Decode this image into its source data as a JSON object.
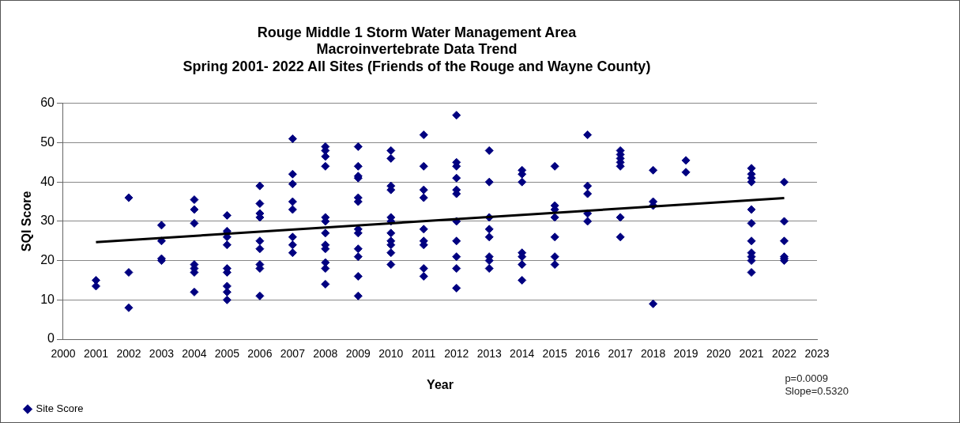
{
  "chart_data": {
    "type": "scatter",
    "title": "Rouge Middle 1 Storm Water Management Area\nMacroinvertebrate Data Trend\nSpring 2001- 2022 All Sites (Friends of the Rouge and Wayne County)",
    "xlabel": "Year",
    "ylabel": "SQI Score",
    "xlim": [
      2000,
      2023
    ],
    "xticks": [
      2000,
      2001,
      2002,
      2003,
      2004,
      2005,
      2006,
      2007,
      2008,
      2009,
      2010,
      2011,
      2012,
      2013,
      2014,
      2015,
      2016,
      2017,
      2018,
      2019,
      2020,
      2021,
      2022,
      2023
    ],
    "ylim": [
      0,
      60
    ],
    "yticks": [
      0,
      10,
      20,
      30,
      40,
      50,
      60
    ],
    "grid": "y",
    "legend": "bottom left",
    "marker": "diamond",
    "series": [
      {
        "name": "Site Score",
        "color": "#000080",
        "x": [
          2001,
          2001,
          2002,
          2002,
          2002,
          2003,
          2003,
          2003,
          2003,
          2004,
          2004,
          2004,
          2004,
          2004,
          2004,
          2004,
          2005,
          2005,
          2005,
          2005,
          2005,
          2005,
          2005,
          2005,
          2005,
          2005,
          2006,
          2006,
          2006,
          2006,
          2006,
          2006,
          2006,
          2006,
          2006,
          2007,
          2007,
          2007,
          2007,
          2007,
          2007,
          2007,
          2007,
          2008,
          2008,
          2008,
          2008,
          2008,
          2008,
          2008,
          2008,
          2008,
          2008,
          2008,
          2008,
          2009,
          2009,
          2009,
          2009,
          2009,
          2009,
          2009,
          2009,
          2009,
          2009,
          2009,
          2009,
          2010,
          2010,
          2010,
          2010,
          2010,
          2010,
          2010,
          2010,
          2010,
          2010,
          2010,
          2011,
          2011,
          2011,
          2011,
          2011,
          2011,
          2011,
          2011,
          2011,
          2012,
          2012,
          2012,
          2012,
          2012,
          2012,
          2012,
          2012,
          2012,
          2012,
          2012,
          2013,
          2013,
          2013,
          2013,
          2013,
          2013,
          2013,
          2013,
          2014,
          2014,
          2014,
          2014,
          2014,
          2014,
          2014,
          2015,
          2015,
          2015,
          2015,
          2015,
          2015,
          2015,
          2016,
          2016,
          2016,
          2016,
          2016,
          2017,
          2017,
          2017,
          2017,
          2017,
          2017,
          2017,
          2018,
          2018,
          2018,
          2018,
          2019,
          2019,
          2021,
          2021,
          2021,
          2021,
          2021,
          2021,
          2021,
          2021,
          2021,
          2021,
          2021,
          2022,
          2022,
          2022,
          2022,
          2022,
          2022
        ],
        "values": [
          15,
          13.5,
          36,
          17,
          8,
          29,
          25,
          20.5,
          20,
          35.5,
          33,
          29.5,
          19,
          18,
          17,
          12,
          31.5,
          27.5,
          27,
          26,
          24,
          18,
          17,
          13.5,
          12,
          10,
          39,
          34.5,
          32,
          31,
          25,
          23,
          19,
          18,
          11,
          51,
          42,
          39.5,
          35,
          33,
          26,
          24,
          22,
          49,
          48,
          46.5,
          44,
          31,
          30,
          27,
          24,
          23,
          19.5,
          18,
          14,
          49,
          44,
          41.5,
          41,
          36,
          35,
          28,
          27,
          23,
          21,
          16,
          11,
          48,
          46,
          39,
          38,
          31,
          30,
          27,
          25,
          24,
          22,
          19,
          52,
          44,
          38,
          36,
          28,
          25,
          24,
          18,
          16,
          57,
          45,
          44,
          41,
          38,
          37,
          30,
          25,
          21,
          18,
          13,
          48,
          40,
          31,
          28,
          26,
          21,
          20,
          18,
          43,
          42,
          40,
          22,
          21,
          19,
          15,
          44,
          34,
          33,
          31,
          26,
          21,
          19,
          52,
          39,
          37,
          32,
          30,
          48,
          47,
          46,
          45,
          44,
          31,
          26,
          43,
          35,
          34,
          9,
          45.5,
          42.5,
          43.5,
          42,
          41,
          40,
          33,
          29.5,
          25,
          22,
          21,
          20,
          17,
          40,
          30,
          25,
          21,
          20.5,
          20
        ]
      },
      {
        "type": "line",
        "color": "#000000",
        "marker": "none",
        "x": [
          2001,
          2022
        ],
        "values": [
          24.7,
          35.9
        ]
      }
    ],
    "annotations": [
      "p=0.0009",
      "Slope=0.5320"
    ]
  }
}
